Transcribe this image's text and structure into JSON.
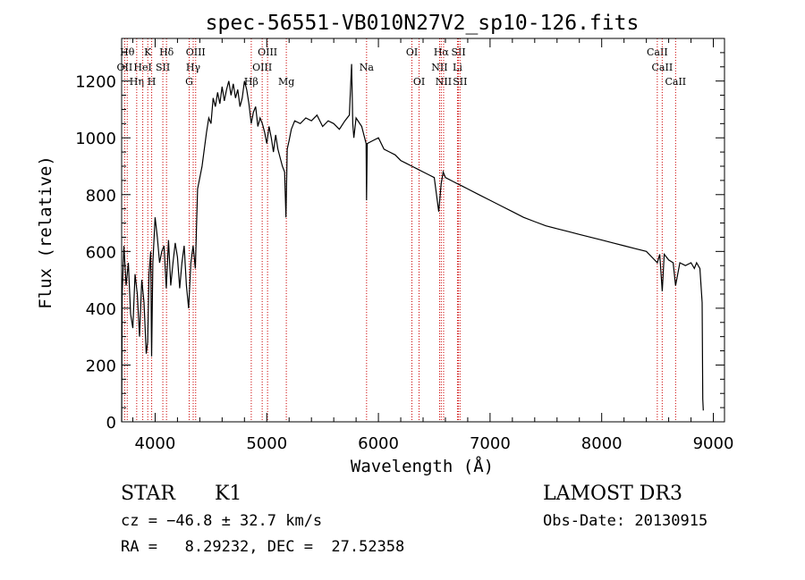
{
  "chart_data": {
    "type": "line",
    "title": "spec-56551-VB010N27V2_sp10-126.fits",
    "xlabel": "Wavelength (Å)",
    "ylabel": "Flux (relative)",
    "xlim": [
      3700,
      9100
    ],
    "ylim": [
      0,
      1350
    ],
    "xticks": [
      4000,
      5000,
      6000,
      7000,
      8000,
      9000
    ],
    "xtick_labels": [
      "4000",
      "5000",
      "6000",
      "7000",
      "8000",
      "9000"
    ],
    "yticks": [
      0,
      200,
      400,
      600,
      800,
      1000,
      1200
    ],
    "ytick_labels": [
      "0",
      "200",
      "400",
      "600",
      "800",
      "1000",
      "1200"
    ],
    "series": [
      {
        "name": "spectrum",
        "x": [
          3700,
          3705,
          3720,
          3740,
          3760,
          3780,
          3800,
          3820,
          3840,
          3860,
          3880,
          3900,
          3920,
          3933,
          3945,
          3960,
          3968,
          3980,
          4000,
          4020,
          4040,
          4060,
          4080,
          4100,
          4120,
          4140,
          4160,
          4180,
          4200,
          4220,
          4240,
          4260,
          4280,
          4300,
          4320,
          4340,
          4360,
          4380,
          4400,
          4420,
          4440,
          4460,
          4480,
          4500,
          4520,
          4540,
          4560,
          4580,
          4600,
          4620,
          4640,
          4660,
          4680,
          4700,
          4720,
          4740,
          4760,
          4780,
          4800,
          4820,
          4840,
          4861,
          4880,
          4900,
          4920,
          4940,
          4960,
          4980,
          5000,
          5020,
          5040,
          5060,
          5080,
          5100,
          5120,
          5140,
          5160,
          5172,
          5183,
          5200,
          5220,
          5250,
          5300,
          5350,
          5400,
          5450,
          5500,
          5550,
          5600,
          5650,
          5700,
          5740,
          5760,
          5770,
          5780,
          5800,
          5850,
          5890,
          5894,
          5900,
          5950,
          6000,
          6050,
          6100,
          6150,
          6200,
          6250,
          6300,
          6350,
          6400,
          6450,
          6500,
          6540,
          6563,
          6580,
          6600,
          6650,
          6700,
          6750,
          6800,
          6900,
          7000,
          7100,
          7200,
          7300,
          7400,
          7500,
          7600,
          7700,
          7800,
          7900,
          8000,
          8100,
          8200,
          8300,
          8400,
          8498,
          8520,
          8542,
          8560,
          8600,
          8640,
          8662,
          8700,
          8750,
          8800,
          8830,
          8850,
          8880,
          8900,
          8905,
          8910
        ],
        "y": [
          0,
          450,
          620,
          480,
          560,
          380,
          330,
          520,
          450,
          300,
          500,
          420,
          240,
          280,
          520,
          600,
          230,
          560,
          720,
          650,
          560,
          600,
          620,
          470,
          640,
          480,
          560,
          630,
          580,
          470,
          560,
          620,
          480,
          400,
          560,
          620,
          540,
          820,
          860,
          900,
          960,
          1020,
          1070,
          1050,
          1140,
          1110,
          1160,
          1120,
          1180,
          1130,
          1170,
          1200,
          1150,
          1190,
          1140,
          1170,
          1110,
          1140,
          1200,
          1170,
          1120,
          1050,
          1090,
          1110,
          1040,
          1070,
          1050,
          1020,
          980,
          1040,
          1000,
          950,
          1010,
          960,
          930,
          900,
          880,
          720,
          960,
          990,
          1030,
          1060,
          1050,
          1070,
          1060,
          1080,
          1040,
          1060,
          1050,
          1030,
          1060,
          1080,
          1260,
          1050,
          1000,
          1070,
          1040,
          980,
          780,
          980,
          990,
          1000,
          960,
          950,
          940,
          920,
          910,
          900,
          890,
          880,
          870,
          860,
          740,
          840,
          880,
          860,
          850,
          840,
          830,
          820,
          800,
          780,
          760,
          740,
          720,
          705,
          690,
          680,
          670,
          660,
          650,
          640,
          630,
          620,
          610,
          600,
          560,
          590,
          460,
          590,
          570,
          560,
          480,
          560,
          550,
          560,
          540,
          560,
          540,
          420,
          80,
          40
        ]
      }
    ],
    "lines": [
      {
        "label": "Hθ",
        "x": 3750,
        "row": 0
      },
      {
        "label": "OII",
        "x": 3727,
        "row": 1
      },
      {
        "label": "Hη",
        "x": 3835,
        "row": 2
      },
      {
        "label": "HeI",
        "x": 3889,
        "row": 1
      },
      {
        "label": "K",
        "x": 3934,
        "row": 0
      },
      {
        "label": "SII",
        "x": 4069,
        "row": 1
      },
      {
        "label": "H",
        "x": 3969,
        "row": 2
      },
      {
        "label": "Hδ",
        "x": 4102,
        "row": 0
      },
      {
        "label": "OIII",
        "x": 4363,
        "row": 0
      },
      {
        "label": "Hγ",
        "x": 4341,
        "row": 1
      },
      {
        "label": "G",
        "x": 4305,
        "row": 2
      },
      {
        "label": "Hβ",
        "x": 4861,
        "row": 2
      },
      {
        "label": "OIII",
        "x": 5007,
        "row": 0
      },
      {
        "label": "OIII",
        "x": 4959,
        "row": 1
      },
      {
        "label": "Mg",
        "x": 5175,
        "row": 2
      },
      {
        "label": "Na",
        "x": 5894,
        "row": 1
      },
      {
        "label": "OI",
        "x": 6300,
        "row": 0
      },
      {
        "label": "OI",
        "x": 6364,
        "row": 2
      },
      {
        "label": "Hα",
        "x": 6563,
        "row": 0
      },
      {
        "label": "NII",
        "x": 6548,
        "row": 1
      },
      {
        "label": "NII",
        "x": 6584,
        "row": 2
      },
      {
        "label": "SII",
        "x": 6717,
        "row": 0
      },
      {
        "label": "Li",
        "x": 6708,
        "row": 1
      },
      {
        "label": "SII",
        "x": 6731,
        "row": 2
      },
      {
        "label": "CaII",
        "x": 8498,
        "row": 0
      },
      {
        "label": "CaII",
        "x": 8542,
        "row": 1
      },
      {
        "label": "CaII",
        "x": 8662,
        "row": 2
      }
    ]
  },
  "footer": {
    "class": "STAR",
    "subclass": "K1",
    "survey": "LAMOST DR3",
    "cz": "cz = −46.8 ± 32.7 km/s",
    "obs_date": "Obs-Date: 20130915",
    "radec": "RA =   8.29232, DEC =  27.52358"
  }
}
